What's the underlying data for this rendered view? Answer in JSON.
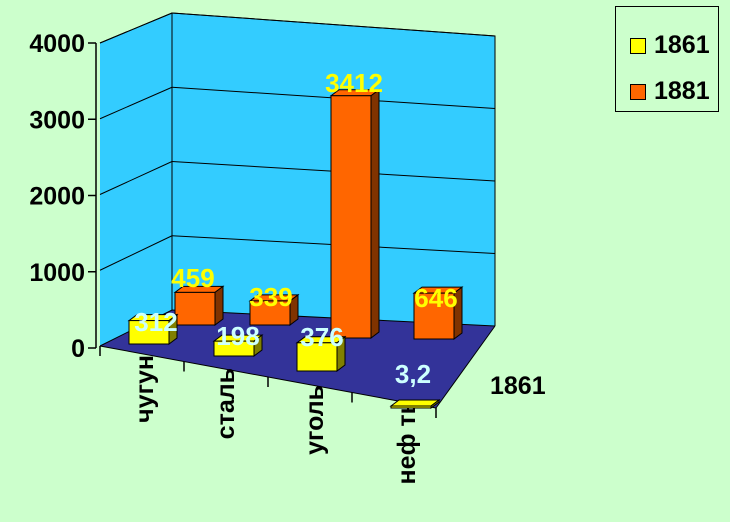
{
  "chart_data": {
    "type": "bar",
    "categories": [
      "чугун",
      "сталь",
      "уголь",
      "неф ть"
    ],
    "series": [
      {
        "name": "1861",
        "values": [
          312,
          198,
          376,
          3.2
        ],
        "labels": [
          "312",
          "198",
          "376",
          "3,2"
        ],
        "color": "#FFFF00",
        "label_color": "#CCFFFF"
      },
      {
        "name": "1881",
        "values": [
          459,
          339,
          3412,
          646
        ],
        "labels": [
          "459",
          "339",
          "3412",
          "646"
        ],
        "color": "#FF6600",
        "label_color": "#FFFF00"
      }
    ],
    "y_ticks": [
      "0",
      "1000",
      "2000",
      "3000",
      "4000"
    ],
    "ylim": [
      0,
      4000
    ],
    "depth_label": "1861",
    "grid": true,
    "legend": "top-right",
    "colors": {
      "background": "#CCFFCC",
      "walls": "#33CCFF",
      "floor": "#333399"
    }
  }
}
